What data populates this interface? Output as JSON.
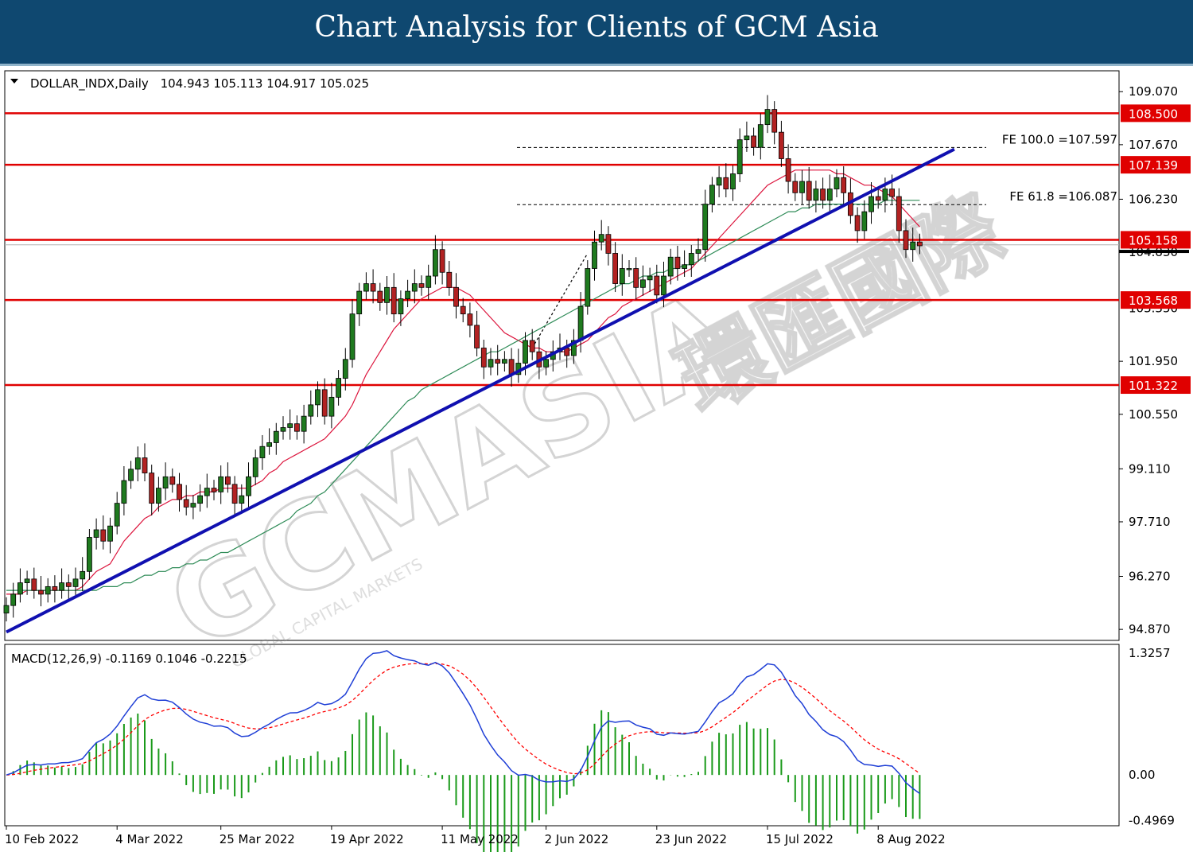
{
  "banner": {
    "title": "Chart Analysis for Clients of GCM Asia"
  },
  "watermark": {
    "text": "GCMASIA",
    "chinese": "環匯國際",
    "subtitle": "GLOBAL CAPITAL MARKETS"
  },
  "colors": {
    "banner": "#0f4870",
    "bull_candle": "#1f7a1f",
    "bear_candle": "#b22222",
    "support_line": "#e00000",
    "trend_line": "#1010b0",
    "ma_fast": "#dc143c",
    "ma_slow": "#2e8b57",
    "macd_line": "#1f3fd6",
    "signal_line": "#ff0000",
    "histogram": "#1a9a1a"
  },
  "chart_data": [
    {
      "type": "candlestick",
      "symbol": "DOLLAR_INDX",
      "timeframe": "Daily",
      "header": "DOLLAR_INDX,Daily",
      "ohlc": "104.943 105.113 104.917 105.025",
      "current_price": 105.025,
      "ylim": [
        94.6,
        109.6
      ],
      "yticks": [
        "109.070",
        "107.670",
        "106.230",
        "101.950",
        "100.550",
        "99.110",
        "97.710",
        "96.270",
        "94.870"
      ],
      "xticks": [
        {
          "label": "10 Feb 2022",
          "bar": 0
        },
        {
          "label": "4 Mar 2022",
          "bar": 16
        },
        {
          "label": "25 Mar 2022",
          "bar": 31
        },
        {
          "label": "19 Apr 2022",
          "bar": 47
        },
        {
          "label": "11 May 2022",
          "bar": 63
        },
        {
          "label": "2 Jun 2022",
          "bar": 78
        },
        {
          "label": "23 Jun 2022",
          "bar": 94
        },
        {
          "label": "15 Jul 2022",
          "bar": 110
        },
        {
          "label": "8 Aug 2022",
          "bar": 126
        }
      ],
      "close": [
        95.5,
        95.8,
        96.1,
        96.2,
        95.9,
        95.8,
        96.0,
        95.9,
        96.1,
        96.0,
        96.2,
        96.4,
        97.3,
        97.5,
        97.2,
        97.6,
        98.2,
        98.8,
        99.1,
        99.4,
        99.0,
        98.2,
        98.6,
        98.9,
        98.7,
        98.3,
        98.1,
        98.2,
        98.4,
        98.6,
        98.5,
        98.9,
        98.7,
        98.2,
        98.4,
        98.9,
        99.4,
        99.7,
        99.8,
        100.1,
        100.2,
        100.3,
        100.1,
        100.5,
        100.8,
        101.2,
        100.5,
        101.0,
        101.5,
        102.0,
        103.2,
        103.8,
        104.0,
        103.8,
        103.5,
        103.9,
        103.2,
        103.6,
        103.8,
        104.0,
        103.9,
        104.2,
        104.9,
        104.3,
        103.9,
        103.4,
        103.2,
        102.9,
        102.3,
        101.8,
        102.0,
        101.9,
        102.0,
        101.6,
        101.9,
        102.5,
        102.2,
        101.8,
        102.0,
        102.2,
        102.3,
        102.1,
        102.5,
        103.4,
        104.4,
        105.1,
        105.3,
        104.8,
        104.0,
        104.4,
        104.4,
        103.9,
        104.1,
        104.2,
        103.7,
        104.2,
        104.7,
        104.4,
        104.5,
        104.8,
        104.9,
        106.1,
        106.6,
        106.8,
        106.5,
        106.9,
        107.8,
        107.9,
        107.6,
        108.2,
        108.6,
        108.0,
        107.3,
        106.7,
        106.4,
        106.7,
        106.2,
        106.5,
        106.2,
        106.5,
        106.8,
        106.4,
        105.8,
        105.4,
        105.9,
        106.3,
        106.2,
        106.5,
        106.3,
        105.4,
        104.9,
        105.1,
        105.0
      ],
      "ma_fast": [
        95.8,
        95.8,
        95.8,
        95.9,
        95.9,
        95.9,
        95.9,
        95.9,
        95.9,
        95.9,
        95.9,
        96.0,
        96.2,
        96.4,
        96.5,
        96.6,
        96.9,
        97.2,
        97.4,
        97.6,
        97.8,
        97.9,
        98.1,
        98.2,
        98.3,
        98.3,
        98.4,
        98.4,
        98.5,
        98.5,
        98.5,
        98.6,
        98.6,
        98.6,
        98.6,
        98.6,
        98.7,
        98.8,
        99.0,
        99.1,
        99.3,
        99.4,
        99.5,
        99.6,
        99.7,
        99.8,
        99.9,
        100.1,
        100.3,
        100.5,
        100.8,
        101.2,
        101.6,
        101.9,
        102.2,
        102.5,
        102.8,
        103.0,
        103.2,
        103.4,
        103.6,
        103.7,
        103.8,
        103.9,
        103.9,
        103.9,
        103.8,
        103.7,
        103.5,
        103.3,
        103.1,
        102.9,
        102.7,
        102.6,
        102.5,
        102.4,
        102.3,
        102.3,
        102.2,
        102.2,
        102.2,
        102.2,
        102.3,
        102.4,
        102.5,
        102.7,
        102.9,
        103.1,
        103.2,
        103.4,
        103.5,
        103.6,
        103.7,
        103.8,
        103.9,
        104.0,
        104.1,
        104.2,
        104.3,
        104.4,
        104.6,
        104.8,
        105.0,
        105.2,
        105.4,
        105.6,
        105.8,
        106.0,
        106.2,
        106.4,
        106.6,
        106.7,
        106.8,
        106.9,
        107.0,
        107.0,
        107.0,
        107.0,
        107.0,
        107.0,
        106.9,
        106.9,
        106.8,
        106.7,
        106.6,
        106.6,
        106.5,
        106.4,
        106.3,
        106.1,
        105.9,
        105.7,
        105.5
      ],
      "ma_slow": [
        95.9,
        95.9,
        95.9,
        95.9,
        95.9,
        95.9,
        95.9,
        95.9,
        95.9,
        95.9,
        95.9,
        95.9,
        95.9,
        95.9,
        96.0,
        96.0,
        96.0,
        96.1,
        96.1,
        96.2,
        96.3,
        96.3,
        96.4,
        96.4,
        96.5,
        96.5,
        96.6,
        96.6,
        96.7,
        96.7,
        96.8,
        96.9,
        96.9,
        97.0,
        97.1,
        97.2,
        97.3,
        97.4,
        97.5,
        97.6,
        97.7,
        97.8,
        98.0,
        98.1,
        98.2,
        98.4,
        98.5,
        98.7,
        98.9,
        99.1,
        99.3,
        99.5,
        99.7,
        99.9,
        100.1,
        100.3,
        100.5,
        100.7,
        100.9,
        101.0,
        101.2,
        101.3,
        101.4,
        101.5,
        101.6,
        101.7,
        101.8,
        101.9,
        102.0,
        102.1,
        102.2,
        102.2,
        102.3,
        102.4,
        102.5,
        102.6,
        102.7,
        102.8,
        102.9,
        103.0,
        103.1,
        103.2,
        103.3,
        103.4,
        103.5,
        103.6,
        103.7,
        103.8,
        103.9,
        104.0,
        104.0,
        104.1,
        104.2,
        104.2,
        104.3,
        104.3,
        104.4,
        104.4,
        104.5,
        104.5,
        104.6,
        104.7,
        104.8,
        104.9,
        105.0,
        105.1,
        105.2,
        105.3,
        105.4,
        105.5,
        105.6,
        105.7,
        105.8,
        105.9,
        105.9,
        106.0,
        106.0,
        106.1,
        106.1,
        106.1,
        106.1,
        106.1,
        106.1,
        106.1,
        106.1,
        106.1,
        106.1,
        106.2,
        106.2,
        106.2,
        106.2,
        106.2,
        106.2
      ],
      "horizontal_levels": [
        108.5,
        107.139,
        105.158,
        103.568,
        101.322
      ],
      "level_labels": [
        "108.500",
        "107.139",
        "105.158",
        "103.568",
        "101.322"
      ],
      "fibonacci": [
        {
          "level": 107.597,
          "label": "FE 100.0 =107.597"
        },
        {
          "level": 106.087,
          "label": "FE 61.8 =106.087"
        }
      ],
      "trendline": {
        "from": {
          "bar": 0,
          "price": 94.8
        },
        "to": {
          "bar": 137,
          "price": 107.55
        }
      },
      "price_marker_label": "104.830",
      "hidden_tick_label": "103.350"
    },
    {
      "type": "macd",
      "header": "MACD(12,26,9) -0.1169 0.1046 -0.2215",
      "params": [
        12,
        26,
        9
      ],
      "values": {
        "macd": -0.1169,
        "signal": 0.1046,
        "histogram": -0.2215
      },
      "ylim": [
        -0.5,
        1.35
      ],
      "yticks": [
        "1.3257",
        "0.00",
        "-0.4969"
      ]
    }
  ]
}
